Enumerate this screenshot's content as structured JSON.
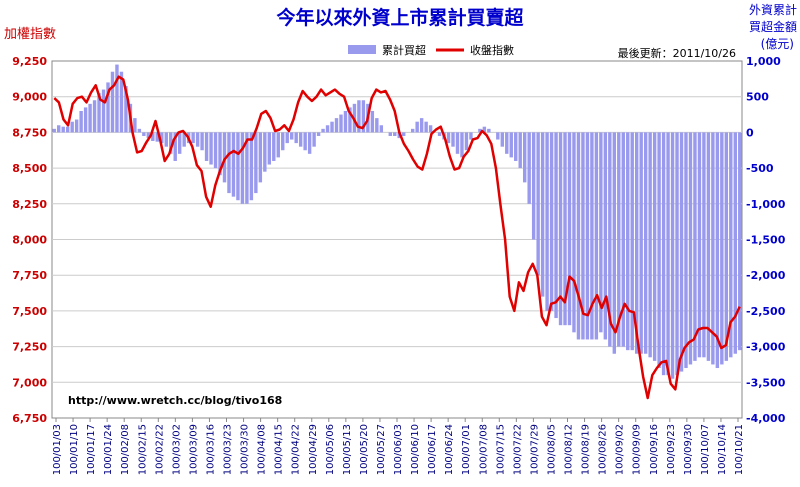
{
  "chart_data": {
    "type": "bar",
    "title": "今年以來外資上市累計買賣超",
    "left_axis_title": "加權指數",
    "right_axis_title": [
      "外資累計",
      "買超金額",
      "(億元)"
    ],
    "update_label": "最後更新：2011/10/26",
    "credit": "http://www.wretch.cc/blog/tivo168",
    "legend": {
      "bar": "累計買超",
      "line": "收盤指數"
    },
    "colors": {
      "bar": "#9999ee",
      "line": "#e00000",
      "title": "#0000cc",
      "left_axis": "#cc0000",
      "right_axis": "#0000cc"
    },
    "grid": true,
    "ylim_left": [
      6750,
      9250
    ],
    "ylim_right": [
      -4000,
      1000
    ],
    "left_ticks": [
      "6,750",
      "7,000",
      "7,250",
      "7,500",
      "7,750",
      "8,000",
      "8,250",
      "8,500",
      "8,750",
      "9,000",
      "9,250"
    ],
    "right_ticks": [
      "-4,000",
      "-3,500",
      "-3,000",
      "-2,500",
      "-2,000",
      "-1,500",
      "-1,000",
      "-500",
      "0",
      "500",
      "1,000"
    ],
    "date_labels": [
      "100/01/03",
      "100/01/10",
      "100/01/17",
      "100/01/24",
      "100/02/08",
      "100/02/15",
      "100/02/22",
      "100/03/02",
      "100/03/09",
      "100/03/16",
      "100/03/23",
      "100/03/30",
      "100/04/08",
      "100/04/15",
      "100/04/22",
      "100/04/29",
      "100/05/06",
      "100/05/13",
      "100/05/20",
      "100/05/27",
      "100/06/03",
      "100/06/10",
      "100/06/17",
      "100/06/24",
      "100/07/01",
      "100/07/08",
      "100/07/15",
      "100/07/22",
      "100/07/29",
      "100/08/05",
      "100/08/12",
      "100/08/19",
      "100/08/26",
      "100/09/02",
      "100/09/09",
      "100/09/16",
      "100/09/23",
      "100/09/30",
      "100/10/07",
      "100/10/14",
      "100/10/21"
    ],
    "series": [
      {
        "name": "累計買超",
        "axis": "right",
        "values": [
          50,
          100,
          80,
          80,
          150,
          180,
          300,
          350,
          400,
          450,
          550,
          600,
          700,
          850,
          950,
          850,
          650,
          400,
          200,
          50,
          -50,
          -80,
          -120,
          -130,
          -150,
          -200,
          -300,
          -400,
          -300,
          -200,
          -150,
          -150,
          -200,
          -250,
          -400,
          -450,
          -500,
          -600,
          -700,
          -850,
          -900,
          -950,
          -1000,
          -1000,
          -950,
          -850,
          -700,
          -550,
          -450,
          -400,
          -350,
          -250,
          -150,
          -100,
          -150,
          -200,
          -250,
          -300,
          -200,
          -50,
          50,
          100,
          150,
          200,
          250,
          300,
          350,
          400,
          450,
          450,
          400,
          300,
          200,
          100,
          0,
          -50,
          -50,
          -80,
          -50,
          0,
          50,
          150,
          200,
          150,
          100,
          0,
          -50,
          -100,
          -150,
          -200,
          -300,
          -350,
          -250,
          -100,
          0,
          50,
          80,
          50,
          0,
          -100,
          -200,
          -300,
          -350,
          -400,
          -500,
          -700,
          -1000,
          -1500,
          -2000,
          -2300,
          -2500,
          -2500,
          -2600,
          -2700,
          -2700,
          -2700,
          -2800,
          -2900,
          -2900,
          -2900,
          -2900,
          -2900,
          -2800,
          -2900,
          -3000,
          -3100,
          -3000,
          -3000,
          -3050,
          -3050,
          -3100,
          -3100,
          -3100,
          -3150,
          -3200,
          -3300,
          -3400,
          -3400,
          -3450,
          -3400,
          -3350,
          -3300,
          -3250,
          -3200,
          -3150,
          -3150,
          -3200,
          -3250,
          -3300,
          -3250,
          -3200,
          -3150,
          -3100,
          -3050
        ]
      },
      {
        "name": "收盤指數",
        "axis": "left",
        "values": [
          8990,
          8960,
          8840,
          8800,
          8950,
          8990,
          9000,
          8960,
          9030,
          9080,
          8980,
          8960,
          9050,
          9080,
          9140,
          9120,
          8980,
          8750,
          8610,
          8620,
          8680,
          8730,
          8830,
          8700,
          8550,
          8600,
          8700,
          8750,
          8760,
          8720,
          8650,
          8520,
          8480,
          8300,
          8230,
          8380,
          8480,
          8560,
          8600,
          8620,
          8600,
          8640,
          8700,
          8700,
          8780,
          8880,
          8900,
          8850,
          8760,
          8770,
          8800,
          8760,
          8840,
          8960,
          9040,
          9000,
          8970,
          9000,
          9050,
          9010,
          9030,
          9050,
          9020,
          9000,
          8900,
          8850,
          8790,
          8780,
          8830,
          8990,
          9050,
          9030,
          9040,
          8980,
          8900,
          8750,
          8670,
          8620,
          8560,
          8510,
          8490,
          8600,
          8740,
          8770,
          8790,
          8700,
          8580,
          8490,
          8500,
          8580,
          8620,
          8700,
          8710,
          8760,
          8730,
          8670,
          8500,
          8240,
          8000,
          7600,
          7500,
          7700,
          7640,
          7770,
          7830,
          7750,
          7460,
          7400,
          7550,
          7560,
          7600,
          7560,
          7740,
          7710,
          7600,
          7480,
          7470,
          7550,
          7610,
          7520,
          7600,
          7410,
          7350,
          7460,
          7550,
          7500,
          7490,
          7250,
          7040,
          6890,
          7050,
          7100,
          7140,
          7150,
          6990,
          6950,
          7160,
          7240,
          7280,
          7300,
          7370,
          7380,
          7380,
          7350,
          7320,
          7240,
          7260,
          7420,
          7460,
          7530
        ]
      }
    ]
  }
}
